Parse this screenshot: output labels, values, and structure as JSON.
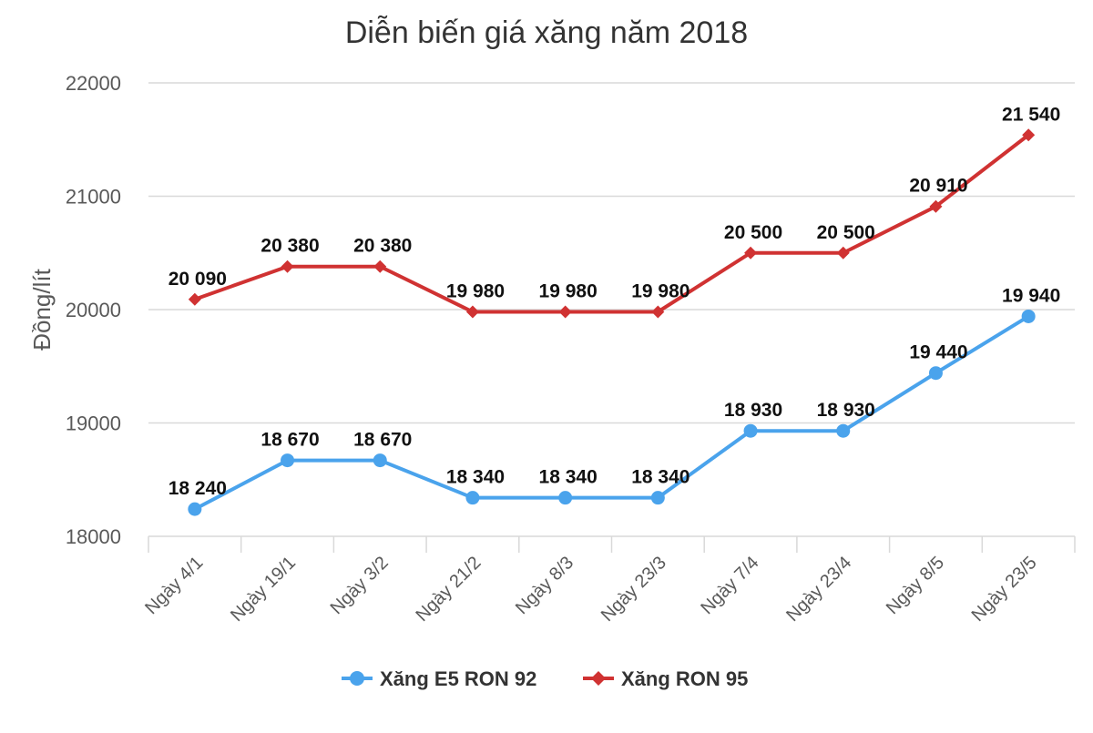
{
  "chart_data": {
    "type": "line",
    "title": "Diễn biến giá xăng năm 2018",
    "xlabel": "",
    "ylabel": "Đồng/lít",
    "ylim": [
      18000,
      22000
    ],
    "yticks": [
      18000,
      19000,
      20000,
      21000,
      22000
    ],
    "grid": true,
    "legend_position": "bottom",
    "categories": [
      "Ngày 4/1",
      "Ngày 19/1",
      "Ngày 3/2",
      "Ngày 21/2",
      "Ngày 8/3",
      "Ngày 23/3",
      "Ngày 7/4",
      "Ngày 23/4",
      "Ngày 8/5",
      "Ngày 23/5"
    ],
    "series": [
      {
        "name": "Xăng E5 RON 92",
        "color": "#4aa3ec",
        "marker": "circle",
        "values": [
          18240,
          18670,
          18670,
          18340,
          18340,
          18340,
          18930,
          18930,
          19440,
          19940
        ],
        "labels": [
          "18 240",
          "18 670",
          "18 670",
          "18 340",
          "18 340",
          "18 340",
          "18 930",
          "18 930",
          "19 440",
          "19 940"
        ]
      },
      {
        "name": "Xăng RON 95",
        "color": "#d03232",
        "marker": "diamond",
        "values": [
          20090,
          20380,
          20380,
          19980,
          19980,
          19980,
          20500,
          20500,
          20910,
          21540
        ],
        "labels": [
          "20 090",
          "20 380",
          "20 380",
          "19 980",
          "19 980",
          "19 980",
          "20 500",
          "20 500",
          "20 910",
          "21 540"
        ]
      }
    ]
  }
}
